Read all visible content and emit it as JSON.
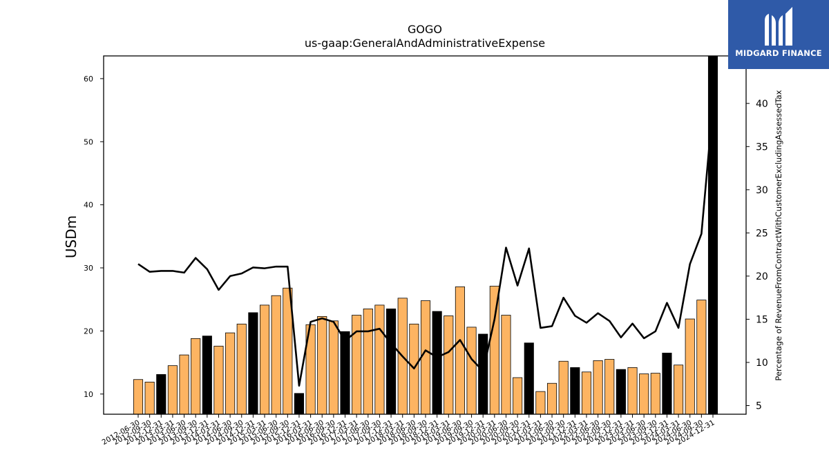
{
  "chart_data": {
    "type": "bar+line",
    "title": "GOGO",
    "subtitle": "us-gaap:GeneralAndAdministrativeExpense",
    "ylabel": "USDm",
    "y2label": "Percentage of RevenueFromContractWithCustomerExcludingAssessedTax",
    "ylim": [
      6.8,
      63.6
    ],
    "y2lim": [
      4.0,
      45.5
    ],
    "yticks": [
      10,
      20,
      30,
      40,
      50,
      60
    ],
    "y2ticks": [
      5,
      10,
      15,
      20,
      25,
      30,
      35,
      40
    ],
    "bar_color_default": "#fdb462",
    "bar_color_q4": "#000000",
    "line_color": "#000000",
    "categories": [
      "2012-06-30",
      "2012-09-30",
      "2012-12-31",
      "2013-03-31",
      "2013-06-30",
      "2013-09-30",
      "2013-12-31",
      "2014-03-31",
      "2014-06-30",
      "2014-09-30",
      "2014-12-31",
      "2015-03-31",
      "2015-06-30",
      "2015-09-30",
      "2015-12-31",
      "2016-03-31",
      "2016-06-30",
      "2016-09-30",
      "2016-12-31",
      "2017-03-31",
      "2017-06-30",
      "2017-09-30",
      "2017-12-31",
      "2018-03-31",
      "2018-06-30",
      "2018-09-30",
      "2018-12-31",
      "2019-03-31",
      "2019-06-30",
      "2019-09-30",
      "2019-12-31",
      "2020-03-31",
      "2020-06-30",
      "2020-09-30",
      "2020-12-31",
      "2021-03-31",
      "2021-06-30",
      "2021-09-30",
      "2021-12-31",
      "2022-03-31",
      "2022-06-30",
      "2022-09-30",
      "2022-12-31",
      "2023-03-31",
      "2023-06-30",
      "2023-09-30",
      "2023-12-31",
      "2024-03-31",
      "2024-06-30",
      "2024-09-30",
      "2024-12-31"
    ],
    "x_tick_labels": [
      "2012-06-30",
      "2012-09-30",
      "2012-12-31",
      "2013-03-31",
      "2013-06-30",
      "2013-09-30",
      "2013-12-31",
      "2014-03-31",
      "2014-06-30",
      "2014-09-30",
      "2014-12-31",
      "2015-03-31",
      "2015-06-30",
      "2015-09-30",
      "2015-12-31",
      "2016-03-31",
      "2016-06-30",
      "2016-09-30",
      "2016-12-31",
      "2017-03-31",
      "2017-06-30",
      "2017-09-30",
      "2017-12-31",
      "2018-03-31",
      "2018-06-30",
      "2018-09-30",
      "2018-12-31",
      "2019-03-31",
      "2019-06-30",
      "2019-09-30",
      "2019-12-31",
      "2020-03-31",
      "2020-06-30",
      "2020-09-30",
      "2020-12-31",
      "2021-03-31",
      "2021-06-30",
      "2021-09-30",
      "2021-12-31",
      "2022-03-31",
      "2022-06-30",
      "2022-09-30",
      "2022-12-31",
      "2023-03-31",
      "2023-06-30",
      "2023-09-30",
      "2023-12-31",
      "2024-03-31",
      "2024-06-30",
      "2024-09-30",
      "2024-12-31"
    ],
    "series": [
      {
        "kind": "bar",
        "axis": "left",
        "values": [
          12.3,
          11.9,
          13.1,
          14.5,
          16.2,
          18.8,
          19.2,
          17.6,
          19.7,
          21.1,
          22.9,
          24.1,
          25.6,
          26.8,
          10.1,
          21.0,
          22.3,
          21.6,
          19.9,
          22.5,
          23.5,
          24.1,
          23.5,
          25.2,
          21.1,
          24.8,
          23.1,
          22.4,
          27.0,
          20.6,
          19.5,
          27.1,
          22.5,
          12.6,
          18.1,
          10.4,
          11.7,
          15.2,
          14.2,
          13.5,
          15.3,
          15.5,
          13.9,
          14.2,
          13.2,
          13.3,
          16.5,
          14.6,
          21.9,
          24.9,
          63.6
        ]
      },
      {
        "kind": "line",
        "axis": "right",
        "values": [
          21.4,
          20.5,
          20.6,
          20.6,
          20.4,
          22.1,
          20.8,
          18.4,
          20.0,
          20.3,
          21.0,
          20.9,
          21.1,
          21.1,
          7.3,
          14.7,
          15.1,
          14.7,
          12.5,
          13.6,
          13.6,
          13.9,
          12.2,
          10.7,
          9.3,
          11.4,
          10.6,
          11.2,
          12.6,
          10.4,
          9.0,
          15.0,
          23.3,
          18.9,
          23.2,
          14.0,
          14.2,
          17.5,
          15.4,
          14.6,
          15.7,
          14.8,
          12.9,
          14.5,
          12.8,
          13.6,
          16.9,
          14.0,
          21.4,
          24.9,
          39.8
        ]
      }
    ]
  },
  "logo": {
    "text": "MIDGARD FINANCE",
    "icon": "midgard-m-logo-icon"
  }
}
